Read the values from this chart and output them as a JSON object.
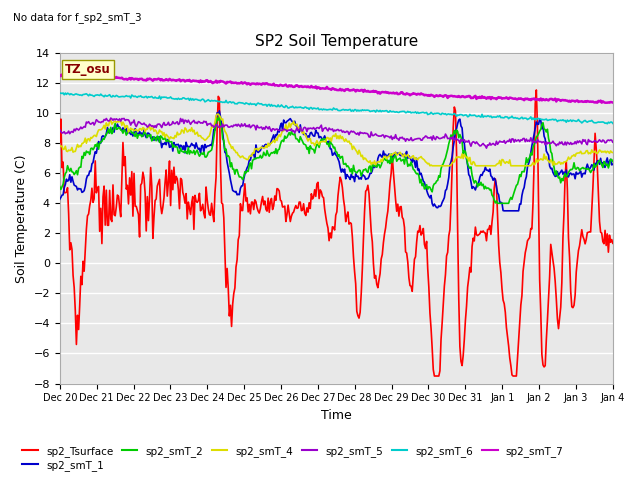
{
  "title": "SP2 Soil Temperature",
  "subtitle": "No data for f_sp2_smT_3",
  "ylabel": "Soil Temperature (C)",
  "xlabel": "Time",
  "ylim": [
    -8,
    14
  ],
  "yticks": [
    -8,
    -6,
    -4,
    -2,
    0,
    2,
    4,
    6,
    8,
    10,
    12,
    14
  ],
  "xtick_labels": [
    "Dec 20",
    "Dec 21",
    "Dec 22",
    "Dec 23",
    "Dec 24",
    "Dec 25",
    "Dec 26",
    "Dec 27",
    "Dec 28",
    "Dec 29",
    "Dec 30",
    "Dec 31",
    "Jan 1",
    "Jan 2",
    "Jan 3",
    "Jan 4"
  ],
  "tz_label": "TZ_osu",
  "tz_box_facecolor": "#ffffcc",
  "tz_box_edgecolor": "#999900",
  "tz_text_color": "#880000",
  "fig_facecolor": "#ffffff",
  "plot_facecolor": "#e8e8e8",
  "grid_color": "#cccccc",
  "legend_entries": [
    "sp2_Tsurface",
    "sp2_smT_1",
    "sp2_smT_2",
    "sp2_smT_4",
    "sp2_smT_5",
    "sp2_smT_6",
    "sp2_smT_7"
  ],
  "line_colors": [
    "#ff0000",
    "#0000cc",
    "#00cc00",
    "#dddd00",
    "#9900cc",
    "#00cccc",
    "#cc00cc"
  ],
  "line_widths": [
    1.2,
    1.2,
    1.2,
    1.2,
    1.2,
    1.2,
    1.8
  ]
}
